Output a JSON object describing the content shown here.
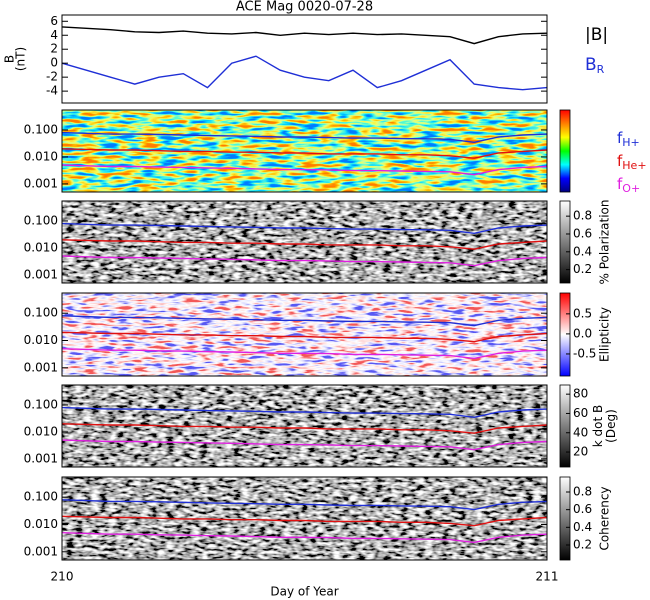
{
  "chart_data": [
    {
      "type": "line",
      "title": "ACE Mag 0020-07-28",
      "ylabel": [
        "B",
        "(nT)"
      ],
      "ylog": false,
      "xlim": [
        210,
        211
      ],
      "ylim": [
        -5.7,
        6.9
      ],
      "yticks": [
        -4,
        -2,
        0,
        2,
        4,
        6
      ],
      "x": [
        210,
        210.05,
        210.1,
        210.15,
        210.2,
        210.25,
        210.3,
        210.35,
        210.4,
        210.45,
        210.5,
        210.55,
        210.6,
        210.65,
        210.7,
        210.75,
        210.8,
        210.85,
        210.9,
        210.95,
        211
      ],
      "series": [
        {
          "name": "|B|",
          "color": "#000000",
          "values": [
            5.2,
            5.0,
            4.8,
            4.5,
            4.4,
            4.6,
            4.3,
            4.2,
            4.4,
            4.0,
            4.3,
            4.1,
            4.3,
            4.1,
            4.2,
            4.0,
            3.8,
            2.8,
            3.8,
            4.2,
            4.3
          ]
        },
        {
          "name": "B",
          "subscript": "R",
          "color": "#1f2fd6",
          "values": [
            0,
            -1,
            -2,
            -3,
            -2,
            -1.5,
            -3.5,
            0,
            1,
            -1,
            -2,
            -2.5,
            -1,
            -3.5,
            -2.5,
            -1,
            0.5,
            -3,
            -3.5,
            -3.8,
            -3.5
          ]
        }
      ]
    },
    {
      "type": "line",
      "ylog": true,
      "xlim": [
        210,
        211
      ],
      "ylim": [
        0.0005,
        0.55
      ],
      "yticks": [
        0.001,
        {
          "value": 0.01,
          "label": "0.010"
        },
        {
          "value": 0.1,
          "label": "0.100"
        }
      ],
      "background": "jet",
      "colorbar": {
        "colors": [
          "#000080",
          "#0000ff",
          "#00ffff",
          "#00ff00",
          "#ffff00",
          "#ff8000",
          "#ff0000"
        ]
      },
      "legend": true,
      "x": [
        210,
        210.05,
        210.1,
        210.15,
        210.2,
        210.25,
        210.3,
        210.35,
        210.4,
        210.45,
        210.5,
        210.55,
        210.6,
        210.65,
        210.7,
        210.75,
        210.8,
        210.85,
        210.9,
        210.95,
        211
      ],
      "series": [
        {
          "name": "f",
          "subscript": "H+",
          "color": "#1f2fd6",
          "values": [
            0.08,
            0.075,
            0.07,
            0.07,
            0.068,
            0.065,
            0.062,
            0.06,
            0.058,
            0.055,
            0.055,
            0.052,
            0.05,
            0.05,
            0.048,
            0.047,
            0.045,
            0.035,
            0.055,
            0.065,
            0.07
          ]
        },
        {
          "name": "f",
          "subscript": "He+",
          "color": "#e01010",
          "values": [
            0.02,
            0.019,
            0.018,
            0.018,
            0.017,
            0.016,
            0.016,
            0.015,
            0.015,
            0.014,
            0.014,
            0.013,
            0.013,
            0.013,
            0.012,
            0.012,
            0.011,
            0.009,
            0.014,
            0.016,
            0.018
          ]
        },
        {
          "name": "f",
          "subscript": "O+",
          "color": "#e020e0",
          "values": [
            0.005,
            0.0047,
            0.0044,
            0.0044,
            0.0042,
            0.0041,
            0.0039,
            0.0038,
            0.0036,
            0.0034,
            0.0034,
            0.0033,
            0.0031,
            0.0031,
            0.003,
            0.0029,
            0.0028,
            0.0022,
            0.0034,
            0.0041,
            0.0044
          ]
        }
      ]
    },
    {
      "type": "line",
      "ylog": true,
      "xlim": [
        210,
        211
      ],
      "ylim": [
        0.0005,
        0.55
      ],
      "yticks": [
        0.001,
        {
          "value": 0.01,
          "label": "0.010"
        },
        {
          "value": 0.1,
          "label": "0.100"
        }
      ],
      "background": "gray",
      "colorbar": {
        "label": [
          "% Polarization"
        ],
        "clim": [
          0.05,
          0.97
        ],
        "cticks": [
          0.2,
          0.4,
          0.6,
          0.8
        ],
        "colors": [
          "#000000",
          "#ffffff"
        ]
      },
      "x": [
        210,
        210.05,
        210.1,
        210.15,
        210.2,
        210.25,
        210.3,
        210.35,
        210.4,
        210.45,
        210.5,
        210.55,
        210.6,
        210.65,
        210.7,
        210.75,
        210.8,
        210.85,
        210.9,
        210.95,
        211
      ],
      "series": [
        {
          "color": "#1f2fd6",
          "values": [
            0.08,
            0.075,
            0.07,
            0.07,
            0.068,
            0.065,
            0.062,
            0.06,
            0.058,
            0.055,
            0.055,
            0.052,
            0.05,
            0.05,
            0.048,
            0.047,
            0.045,
            0.035,
            0.055,
            0.065,
            0.07
          ]
        },
        {
          "color": "#e01010",
          "values": [
            0.02,
            0.019,
            0.018,
            0.018,
            0.017,
            0.016,
            0.016,
            0.015,
            0.015,
            0.014,
            0.014,
            0.013,
            0.013,
            0.013,
            0.012,
            0.012,
            0.011,
            0.009,
            0.014,
            0.016,
            0.018
          ]
        },
        {
          "color": "#e020e0",
          "values": [
            0.005,
            0.0047,
            0.0044,
            0.0044,
            0.0042,
            0.0041,
            0.0039,
            0.0038,
            0.0036,
            0.0034,
            0.0034,
            0.0033,
            0.0031,
            0.0031,
            0.003,
            0.0029,
            0.0028,
            0.0022,
            0.0034,
            0.0041,
            0.0044
          ]
        }
      ]
    },
    {
      "type": "line",
      "ylog": true,
      "xlim": [
        210,
        211
      ],
      "ylim": [
        0.0005,
        0.55
      ],
      "yticks": [
        0.001,
        {
          "value": 0.01,
          "label": "0.010"
        },
        {
          "value": 0.1,
          "label": "0.100"
        }
      ],
      "background": "redblue",
      "colorbar": {
        "label": [
          "Ellipticity"
        ],
        "clim": [
          -1.05,
          1.02
        ],
        "cticks": [
          -0.5,
          {
            "value": 0,
            "label": "0.0"
          },
          0.5
        ],
        "colors": [
          "#0000ff",
          "#ffffff",
          "#ff0000"
        ]
      },
      "x": [
        210,
        210.05,
        210.1,
        210.15,
        210.2,
        210.25,
        210.3,
        210.35,
        210.4,
        210.45,
        210.5,
        210.55,
        210.6,
        210.65,
        210.7,
        210.75,
        210.8,
        210.85,
        210.9,
        210.95,
        211
      ],
      "series": [
        {
          "color": "#1f2fd6",
          "values": [
            0.08,
            0.075,
            0.07,
            0.07,
            0.068,
            0.065,
            0.062,
            0.06,
            0.058,
            0.055,
            0.055,
            0.052,
            0.05,
            0.05,
            0.048,
            0.047,
            0.045,
            0.035,
            0.055,
            0.065,
            0.07
          ]
        },
        {
          "color": "#e01010",
          "values": [
            0.02,
            0.019,
            0.018,
            0.018,
            0.017,
            0.016,
            0.016,
            0.015,
            0.015,
            0.014,
            0.014,
            0.013,
            0.013,
            0.013,
            0.012,
            0.012,
            0.011,
            0.009,
            0.014,
            0.016,
            0.018
          ]
        },
        {
          "color": "#e020e0",
          "values": [
            0.005,
            0.0047,
            0.0044,
            0.0044,
            0.0042,
            0.0041,
            0.0039,
            0.0038,
            0.0036,
            0.0034,
            0.0034,
            0.0033,
            0.0031,
            0.0031,
            0.003,
            0.0029,
            0.0028,
            0.0022,
            0.0034,
            0.0041,
            0.0044
          ]
        }
      ]
    },
    {
      "type": "line",
      "ylog": true,
      "xlim": [
        210,
        211
      ],
      "ylim": [
        0.0005,
        0.55
      ],
      "yticks": [
        0.001,
        {
          "value": 0.01,
          "label": "0.010"
        },
        {
          "value": 0.1,
          "label": "0.100"
        }
      ],
      "background": "gray",
      "colorbar": {
        "label": [
          "k dot B",
          "(Deg)"
        ],
        "clim": [
          4.5,
          89.5
        ],
        "cticks": [
          20,
          40,
          60,
          80
        ],
        "colors": [
          "#000000",
          "#ffffff"
        ]
      },
      "x": [
        210,
        210.05,
        210.1,
        210.15,
        210.2,
        210.25,
        210.3,
        210.35,
        210.4,
        210.45,
        210.5,
        210.55,
        210.6,
        210.65,
        210.7,
        210.75,
        210.8,
        210.85,
        210.9,
        210.95,
        211
      ],
      "series": [
        {
          "color": "#1f2fd6",
          "values": [
            0.08,
            0.075,
            0.07,
            0.07,
            0.068,
            0.065,
            0.062,
            0.06,
            0.058,
            0.055,
            0.055,
            0.052,
            0.05,
            0.05,
            0.048,
            0.047,
            0.045,
            0.035,
            0.055,
            0.065,
            0.07
          ]
        },
        {
          "color": "#e01010",
          "values": [
            0.02,
            0.019,
            0.018,
            0.018,
            0.017,
            0.016,
            0.016,
            0.015,
            0.015,
            0.014,
            0.014,
            0.013,
            0.013,
            0.013,
            0.012,
            0.012,
            0.011,
            0.009,
            0.014,
            0.016,
            0.018
          ]
        },
        {
          "color": "#e020e0",
          "values": [
            0.005,
            0.0047,
            0.0044,
            0.0044,
            0.0042,
            0.0041,
            0.0039,
            0.0038,
            0.0036,
            0.0034,
            0.0034,
            0.0033,
            0.0031,
            0.0031,
            0.003,
            0.0029,
            0.0028,
            0.0022,
            0.0034,
            0.0041,
            0.0044
          ]
        }
      ]
    },
    {
      "type": "line",
      "ylog": true,
      "xlim": [
        210,
        211
      ],
      "ylim": [
        0.0005,
        0.55
      ],
      "yticks": [
        0.001,
        {
          "value": 0.01,
          "label": "0.010"
        },
        {
          "value": 0.1,
          "label": "0.100"
        }
      ],
      "background": "gray",
      "colorbar": {
        "label": [
          "Coherency"
        ],
        "clim": [
          0.03,
          0.97
        ],
        "cticks": [
          0.2,
          0.4,
          0.6,
          0.8
        ],
        "colors": [
          "#000000",
          "#ffffff"
        ]
      },
      "xticks": [
        210,
        211
      ],
      "xlabel": "Day of Year",
      "x": [
        210,
        210.05,
        210.1,
        210.15,
        210.2,
        210.25,
        210.3,
        210.35,
        210.4,
        210.45,
        210.5,
        210.55,
        210.6,
        210.65,
        210.7,
        210.75,
        210.8,
        210.85,
        210.9,
        210.95,
        211
      ],
      "series": [
        {
          "color": "#1f2fd6",
          "values": [
            0.08,
            0.075,
            0.07,
            0.07,
            0.068,
            0.065,
            0.062,
            0.06,
            0.058,
            0.055,
            0.055,
            0.052,
            0.05,
            0.05,
            0.048,
            0.047,
            0.045,
            0.035,
            0.055,
            0.065,
            0.07
          ]
        },
        {
          "color": "#e01010",
          "values": [
            0.02,
            0.019,
            0.018,
            0.018,
            0.017,
            0.016,
            0.016,
            0.015,
            0.015,
            0.014,
            0.014,
            0.013,
            0.013,
            0.013,
            0.012,
            0.012,
            0.011,
            0.009,
            0.014,
            0.016,
            0.018
          ]
        },
        {
          "color": "#e020e0",
          "values": [
            0.005,
            0.0047,
            0.0044,
            0.0044,
            0.0042,
            0.0041,
            0.0039,
            0.0038,
            0.0036,
            0.0034,
            0.0034,
            0.0033,
            0.0031,
            0.0031,
            0.003,
            0.0029,
            0.0028,
            0.0022,
            0.0034,
            0.0041,
            0.0044
          ]
        }
      ]
    }
  ]
}
